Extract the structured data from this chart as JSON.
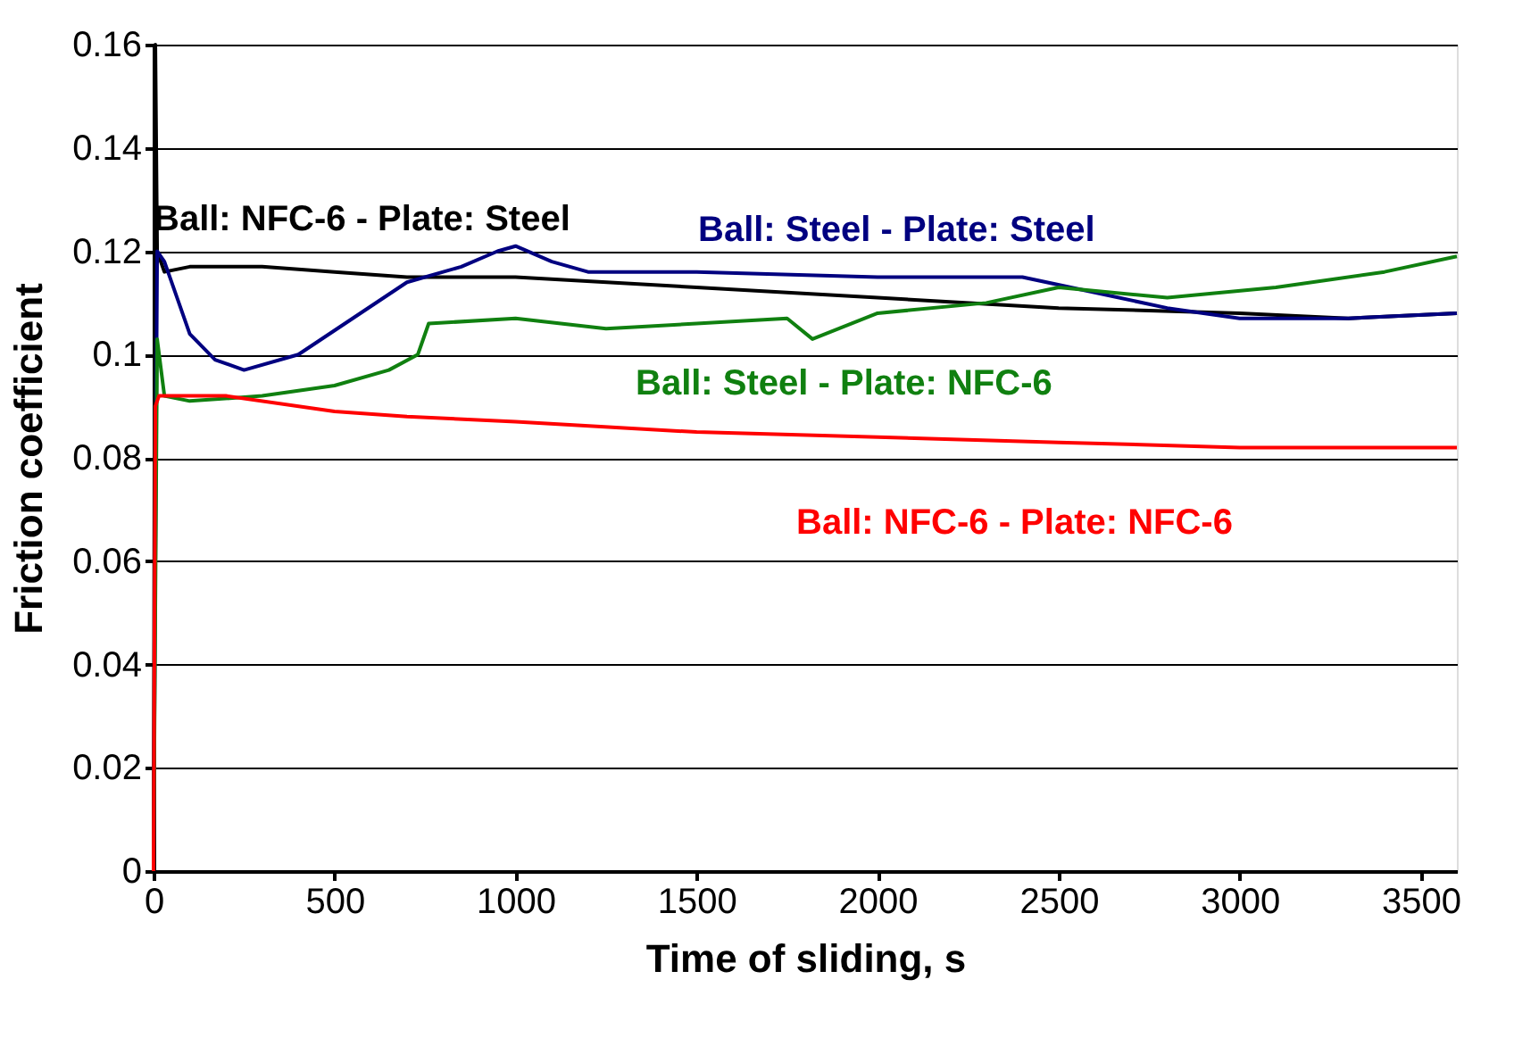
{
  "chart_data": {
    "type": "line",
    "xlabel": "Time of sliding, s",
    "ylabel": "Friction coefficient",
    "xlim": [
      0,
      3600
    ],
    "xticks": [
      0,
      500,
      1000,
      1500,
      2000,
      2500,
      3000,
      3500
    ],
    "ylim": [
      0,
      0.16
    ],
    "yticks": [
      0,
      0.02,
      0.04,
      0.06,
      0.08,
      0.1,
      0.12,
      0.14,
      0.16
    ],
    "grid": "y",
    "legend": false,
    "marker": "none",
    "line_style": "solid",
    "series": [
      {
        "name": "Ball: NFC-6 - Plate: Steel",
        "color": "#000000",
        "x": [
          0,
          5,
          10,
          30,
          100,
          300,
          500,
          700,
          1000,
          1500,
          2000,
          2500,
          3000,
          3300,
          3600
        ],
        "values": [
          0,
          0.16,
          0.12,
          0.116,
          0.117,
          0.117,
          0.116,
          0.115,
          0.115,
          0.113,
          0.111,
          0.109,
          0.108,
          0.107,
          0.108
        ]
      },
      {
        "name": "Ball: Steel - Plate: Steel",
        "color": "#000080",
        "x": [
          0,
          10,
          30,
          100,
          170,
          250,
          400,
          550,
          700,
          850,
          950,
          1000,
          1100,
          1200,
          1500,
          2000,
          2400,
          2600,
          2800,
          3000,
          3300,
          3600
        ],
        "values": [
          0,
          0.12,
          0.118,
          0.104,
          0.099,
          0.097,
          0.1,
          0.107,
          0.114,
          0.117,
          0.12,
          0.121,
          0.118,
          0.116,
          0.116,
          0.115,
          0.115,
          0.112,
          0.109,
          0.107,
          0.107,
          0.108
        ]
      },
      {
        "name": "Ball: Steel - Plate: NFC-6",
        "color": "#108010",
        "x": [
          0,
          10,
          30,
          100,
          300,
          500,
          650,
          730,
          760,
          1000,
          1250,
          1500,
          1750,
          1820,
          2000,
          2300,
          2500,
          2800,
          3100,
          3400,
          3600
        ],
        "values": [
          0,
          0.103,
          0.092,
          0.091,
          0.092,
          0.094,
          0.097,
          0.1,
          0.106,
          0.107,
          0.105,
          0.106,
          0.107,
          0.103,
          0.108,
          0.11,
          0.113,
          0.111,
          0.113,
          0.116,
          0.119
        ]
      },
      {
        "name": "Ball: NFC-6 - Plate: NFC-6",
        "color": "#ff0000",
        "x": [
          0,
          5,
          15,
          50,
          200,
          500,
          700,
          1000,
          1500,
          2000,
          2500,
          3000,
          3300,
          3600
        ],
        "values": [
          0,
          0.09,
          0.092,
          0.092,
          0.092,
          0.089,
          0.088,
          0.087,
          0.085,
          0.084,
          0.083,
          0.082,
          0.082,
          0.082
        ]
      }
    ]
  }
}
